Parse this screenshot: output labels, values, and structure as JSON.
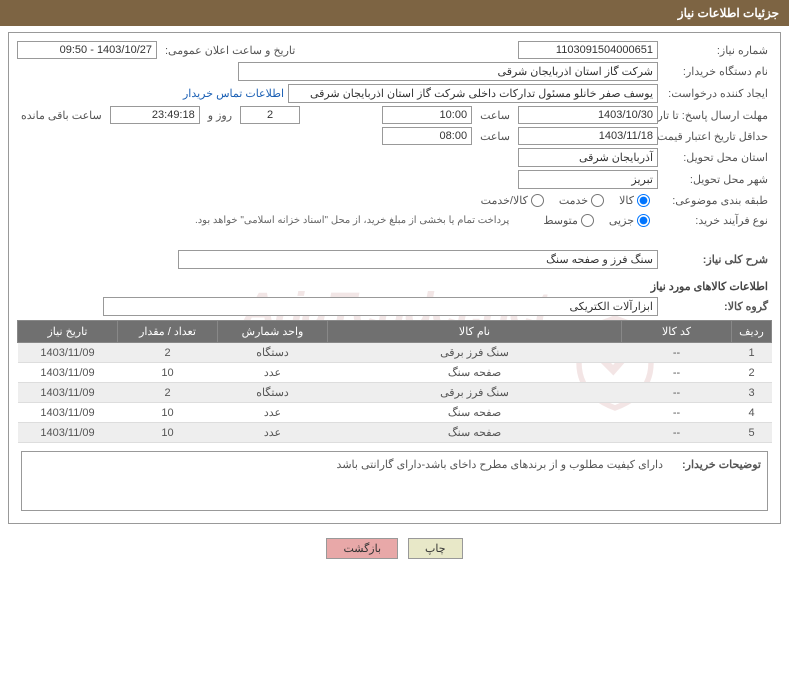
{
  "header": {
    "title": "جزئیات اطلاعات نیاز"
  },
  "watermark": "AriaTender.net",
  "labels": {
    "need_no": "شماره نیاز:",
    "announce": "تاریخ و ساعت اعلان عمومی:",
    "buyer_org": "نام دستگاه خریدار:",
    "requester": "ایجاد کننده درخواست:",
    "contact": "اطلاعات تماس خریدار",
    "deadline": "مهلت ارسال پاسخ: تا تاریخ:",
    "hour": "ساعت",
    "days_and": "روز و",
    "remaining": "ساعت باقی مانده",
    "validity": "حداقل تاریخ اعتبار قیمت: تا تاریخ:",
    "prov": "استان محل تحویل:",
    "city": "شهر محل تحویل:",
    "category": "طبقه بندی موضوعی:",
    "process": "نوع فرآیند خرید:",
    "pay_note": "پرداخت تمام یا بخشی از مبلغ خرید، از محل \"اسناد خزانه اسلامی\" خواهد بود.",
    "overall": "شرح کلی نیاز:",
    "goods_info": "اطلاعات کالاهای مورد نیاز",
    "goods_group": "گروه کالا:",
    "desc_label": "توضیحات خریدار:",
    "btn_print": "چاپ",
    "btn_back": "بازگشت"
  },
  "fields": {
    "need_no": "1103091504000651",
    "announce": "1403/10/27 - 09:50",
    "buyer_org": "شرکت گاز استان اذربایجان شرقی",
    "requester": "یوسف صفر خانلو  مسئول تدارکات داخلی  شرکت گاز استان اذربایجان شرقی",
    "deadline_date": "1403/10/30",
    "deadline_time": "10:00",
    "days_left": "2",
    "time_left": "23:49:18",
    "validity_date": "1403/11/18",
    "validity_time": "08:00",
    "province": "آذربایجان شرقی",
    "city": "تبریز",
    "overall_desc": "سنگ فرز و صفحه سنگ",
    "goods_group": "ابزارآلات الکتریکی",
    "buyer_desc": "دارای کیفیت مطلوب و از برندهای مطرح داخای باشد-دارای گارانتی باشد"
  },
  "radios": {
    "cat": {
      "goods": "کالا",
      "service": "خدمت",
      "both": "کالا/خدمت"
    },
    "proc": {
      "small": "جزیی",
      "medium": "متوسط"
    }
  },
  "table": {
    "headers": {
      "idx": "ردیف",
      "code": "کد کالا",
      "name": "نام کالا",
      "unit": "واحد شمارش",
      "qty": "تعداد / مقدار",
      "date": "تاریخ نیاز"
    },
    "rows": [
      {
        "idx": "1",
        "code": "--",
        "name": "سنگ فرز برقی",
        "unit": "دستگاه",
        "qty": "2",
        "date": "1403/11/09"
      },
      {
        "idx": "2",
        "code": "--",
        "name": "صفحه سنگ",
        "unit": "عدد",
        "qty": "10",
        "date": "1403/11/09"
      },
      {
        "idx": "3",
        "code": "--",
        "name": "سنگ فرز برقی",
        "unit": "دستگاه",
        "qty": "2",
        "date": "1403/11/09"
      },
      {
        "idx": "4",
        "code": "--",
        "name": "صفحه سنگ",
        "unit": "عدد",
        "qty": "10",
        "date": "1403/11/09"
      },
      {
        "idx": "5",
        "code": "--",
        "name": "صفحه سنگ",
        "unit": "عدد",
        "qty": "10",
        "date": "1403/11/09"
      }
    ]
  },
  "colors": {
    "header_bg": "#7d6443",
    "th_bg": "#707070",
    "link": "#1a5fb4",
    "btn_back_bg": "#e8a8a8",
    "btn_print_bg": "#e8e8c8",
    "watermark": "rgba(150,50,50,0.12)"
  }
}
